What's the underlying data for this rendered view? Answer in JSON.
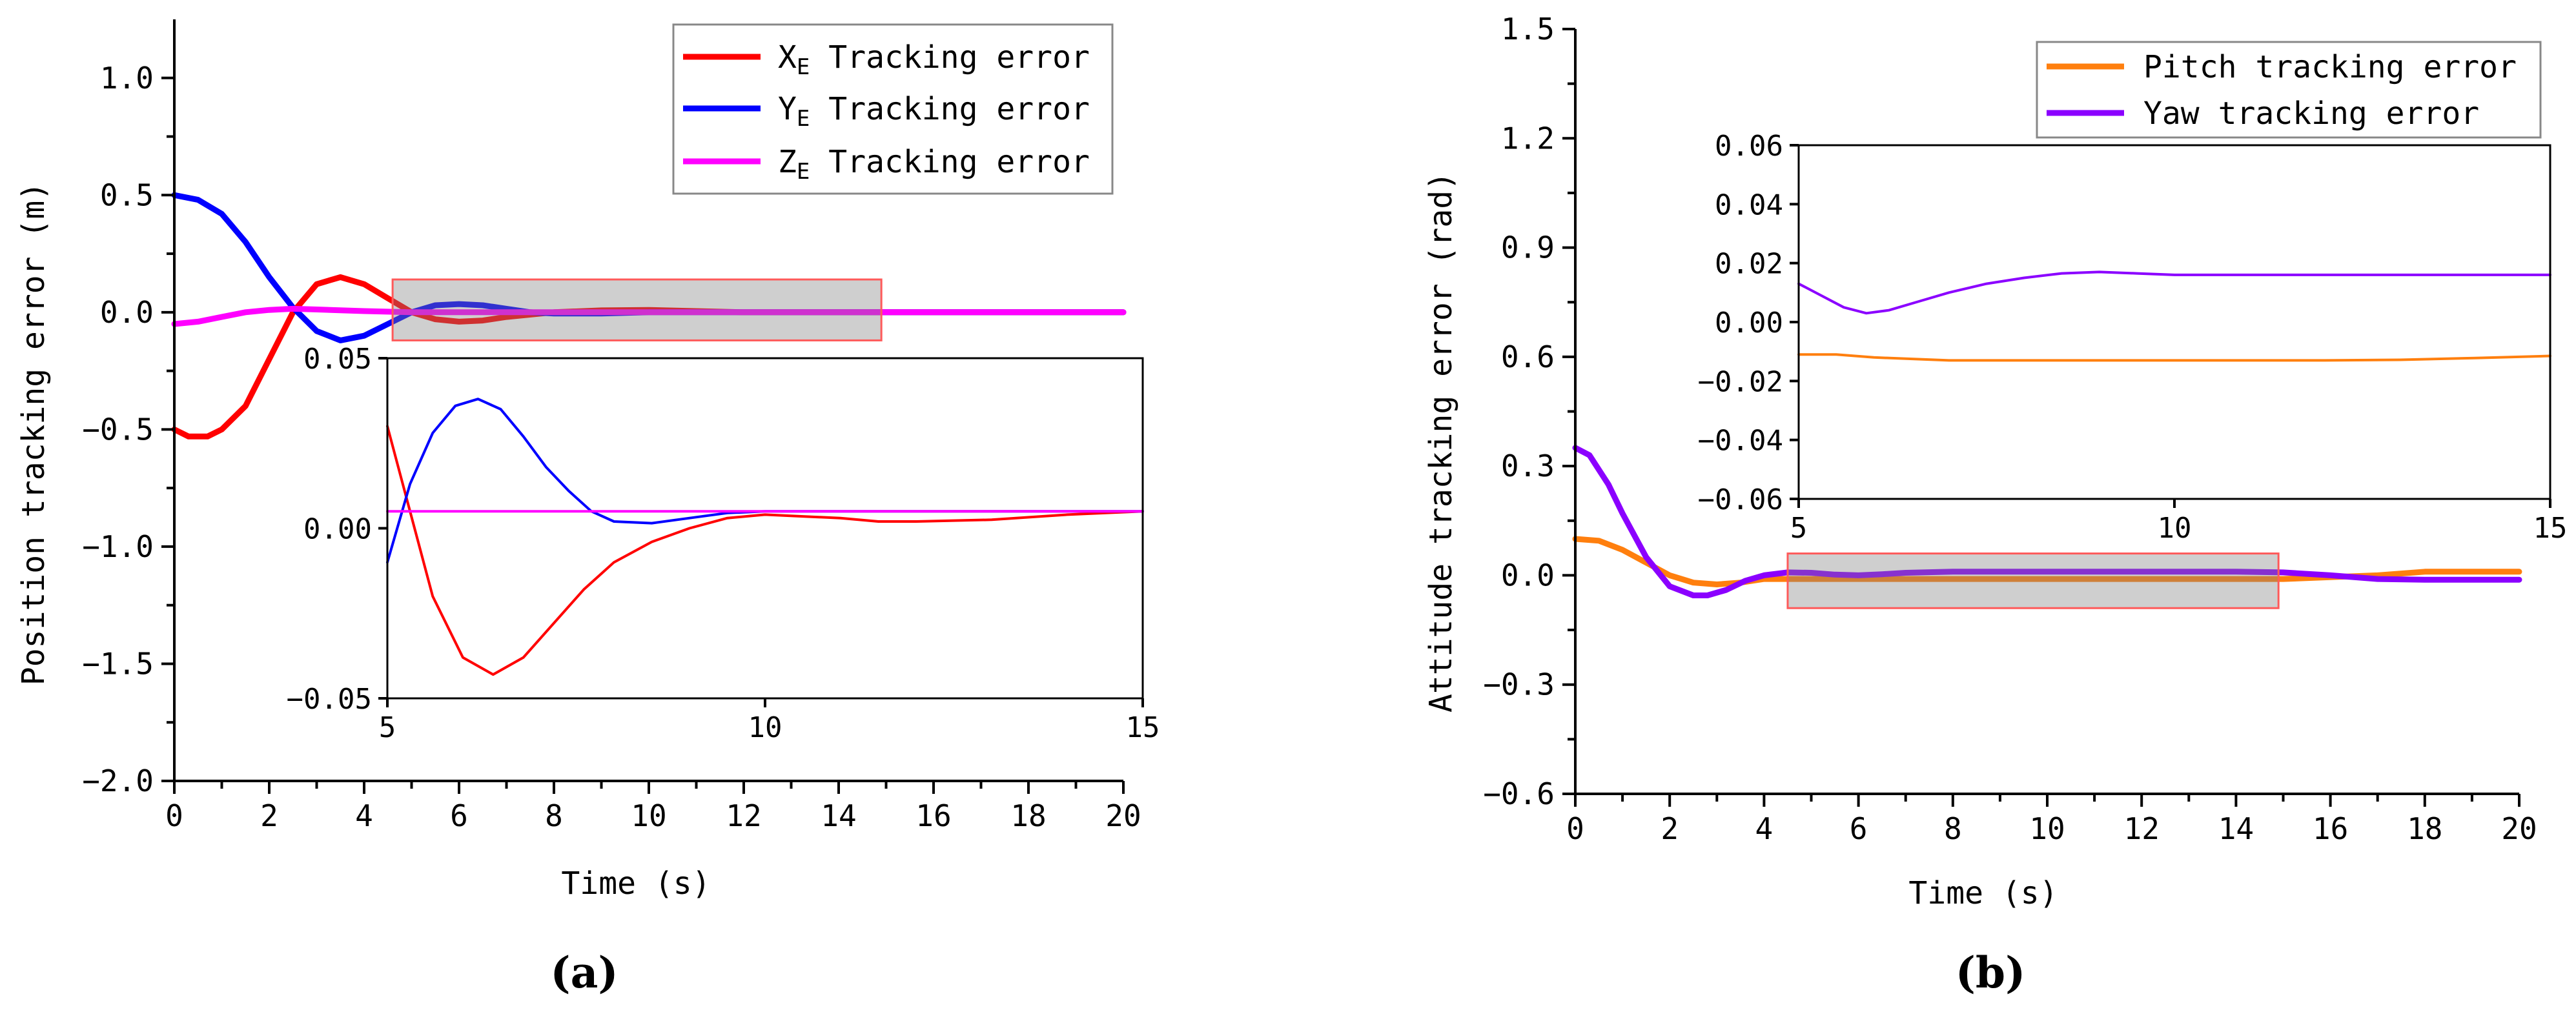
{
  "panel_a": {
    "label": "a",
    "xlabel": "Time (s)",
    "ylabel": "Position tracking error (m)",
    "legend": [
      "X_E Tracking error",
      "Y_E Tracking error",
      "Z_E Tracking error"
    ]
  },
  "panel_b": {
    "label": "b",
    "xlabel": "Time (s)",
    "ylabel": "Attitude tracking error (rad)",
    "legend": [
      "Pitch tracking error",
      "Yaw tracking error"
    ]
  },
  "chart_data": [
    {
      "id": "a-main",
      "type": "line",
      "xlabel": "Time (s)",
      "ylabel": "Position tracking error (m)",
      "xlim": [
        0,
        20
      ],
      "ylim": [
        -2.0,
        1.25
      ],
      "xticks": [
        0,
        2,
        4,
        6,
        8,
        10,
        12,
        14,
        16,
        18,
        20
      ],
      "yticks": [
        -2.0,
        -1.5,
        -1.0,
        -0.5,
        0.0,
        0.5,
        1.0
      ],
      "ytick_labels": [
        "-2.0",
        "-1.5",
        "-1.0",
        "-0.5",
        "0.0",
        "0.5",
        "1.0"
      ],
      "legend_position": "top-right",
      "series": [
        {
          "name": "X_E Tracking error",
          "color": "#ff0000",
          "x": [
            0,
            0.3,
            0.7,
            1,
            1.5,
            2,
            2.5,
            3,
            3.5,
            4,
            4.5,
            5,
            5.5,
            6,
            6.5,
            7,
            8,
            9,
            10,
            12,
            14,
            16,
            20
          ],
          "y": [
            -0.5,
            -0.53,
            -0.53,
            -0.5,
            -0.4,
            -0.2,
            0.0,
            0.12,
            0.15,
            0.12,
            0.06,
            0.0,
            -0.03,
            -0.04,
            -0.035,
            -0.02,
            0.0,
            0.008,
            0.01,
            0.0,
            0.0,
            0.0,
            0.0
          ]
        },
        {
          "name": "Y_E Tracking error",
          "color": "#0000ff",
          "x": [
            0,
            0.5,
            1,
            1.5,
            2,
            2.5,
            3,
            3.5,
            4,
            4.5,
            5,
            5.5,
            6,
            6.5,
            7,
            7.5,
            8,
            9,
            10,
            14,
            20
          ],
          "y": [
            0.5,
            0.48,
            0.42,
            0.3,
            0.15,
            0.02,
            -0.08,
            -0.12,
            -0.1,
            -0.05,
            0.0,
            0.03,
            0.035,
            0.03,
            0.015,
            0.0,
            -0.005,
            -0.005,
            0.0,
            0.0,
            0.0
          ]
        },
        {
          "name": "Z_E Tracking error",
          "color": "#ff00ff",
          "x": [
            0,
            0.5,
            1,
            1.5,
            2,
            2.5,
            3,
            4,
            5,
            6,
            8,
            10,
            20
          ],
          "y": [
            -0.05,
            -0.04,
            -0.02,
            0.0,
            0.01,
            0.015,
            0.012,
            0.005,
            0.0,
            0.0,
            0.0,
            0.0,
            0.0
          ]
        }
      ],
      "zoom_box": {
        "x": [
          4.6,
          14.9
        ],
        "y": [
          -0.12,
          0.14
        ]
      }
    },
    {
      "id": "a-inset",
      "type": "line",
      "xlim": [
        5,
        15
      ],
      "ylim": [
        -0.05,
        0.05
      ],
      "xticks": [
        5,
        10,
        15
      ],
      "yticks": [
        -0.05,
        0.0,
        0.05
      ],
      "ytick_labels": [
        "-0.05",
        "0.00",
        "0.05"
      ],
      "series": [
        {
          "name": "X_E Tracking error",
          "color": "#ff0000",
          "x": [
            5,
            5.3,
            5.6,
            6,
            6.4,
            6.8,
            7.2,
            7.6,
            8,
            8.5,
            9,
            9.5,
            10,
            10.5,
            11,
            11.5,
            12,
            13,
            14,
            15
          ],
          "y": [
            0.03,
            0.005,
            -0.02,
            -0.038,
            -0.043,
            -0.038,
            -0.028,
            -0.018,
            -0.01,
            -0.004,
            0.0,
            0.003,
            0.004,
            0.0035,
            0.003,
            0.002,
            0.002,
            0.0025,
            0.004,
            0.005
          ]
        },
        {
          "name": "Y_E Tracking error",
          "color": "#0000ff",
          "x": [
            5,
            5.3,
            5.6,
            5.9,
            6.2,
            6.5,
            6.8,
            7.1,
            7.4,
            7.7,
            8,
            8.5,
            9,
            9.5,
            10,
            11,
            12,
            15
          ],
          "y": [
            -0.01,
            0.013,
            0.028,
            0.036,
            0.038,
            0.035,
            0.027,
            0.018,
            0.011,
            0.005,
            0.002,
            0.0015,
            0.003,
            0.0045,
            0.005,
            0.005,
            0.005,
            0.005
          ]
        },
        {
          "name": "Z_E Tracking error",
          "color": "#ff00ff",
          "x": [
            5,
            15
          ],
          "y": [
            0.005,
            0.005
          ]
        }
      ]
    },
    {
      "id": "b-main",
      "type": "line",
      "xlabel": "Time (s)",
      "ylabel": "Attitude tracking error (rad)",
      "xlim": [
        0,
        20
      ],
      "ylim": [
        -0.6,
        1.5
      ],
      "xticks": [
        0,
        2,
        4,
        6,
        8,
        10,
        12,
        14,
        16,
        18,
        20
      ],
      "yticks": [
        -0.6,
        -0.3,
        0.0,
        0.3,
        0.6,
        0.9,
        1.2,
        1.5
      ],
      "ytick_labels": [
        "-0.6",
        "-0.3",
        "0.0",
        "0.3",
        "0.6",
        "0.9",
        "1.2",
        "1.5"
      ],
      "legend_position": "top-right",
      "series": [
        {
          "name": "Pitch tracking error",
          "color": "#ff7f0e",
          "x": [
            0,
            0.5,
            1,
            1.5,
            2,
            2.5,
            3,
            3.5,
            4,
            5,
            6,
            8,
            10,
            12,
            14,
            15,
            16,
            17,
            18,
            20
          ],
          "y": [
            0.1,
            0.095,
            0.07,
            0.035,
            0.0,
            -0.02,
            -0.025,
            -0.02,
            -0.01,
            -0.01,
            -0.01,
            -0.01,
            -0.01,
            -0.01,
            -0.01,
            -0.01,
            -0.005,
            0.0,
            0.01,
            0.01
          ]
        },
        {
          "name": "Yaw tracking error",
          "color": "#8b00ff",
          "x": [
            0,
            0.3,
            0.7,
            1,
            1.5,
            2,
            2.5,
            2.8,
            3.2,
            3.6,
            4,
            4.5,
            5,
            5.5,
            6,
            6.5,
            7,
            8,
            10,
            12,
            14,
            15,
            16,
            17,
            18,
            20
          ],
          "y": [
            0.35,
            0.33,
            0.25,
            0.17,
            0.05,
            -0.03,
            -0.055,
            -0.055,
            -0.04,
            -0.015,
            0.0,
            0.008,
            0.007,
            0.002,
            0.0,
            0.003,
            0.007,
            0.01,
            0.01,
            0.01,
            0.01,
            0.008,
            0.0,
            -0.01,
            -0.012,
            -0.012
          ]
        }
      ],
      "zoom_box": {
        "x": [
          4.5,
          14.9
        ],
        "y": [
          -0.09,
          0.06
        ]
      }
    },
    {
      "id": "b-inset",
      "type": "line",
      "xlim": [
        5,
        15
      ],
      "ylim": [
        -0.06,
        0.06
      ],
      "xticks": [
        5,
        10,
        15
      ],
      "yticks": [
        -0.06,
        -0.04,
        -0.02,
        0.0,
        0.02,
        0.04,
        0.06
      ],
      "ytick_labels": [
        "-0.06",
        "-0.04",
        "-0.02",
        "0.00",
        "0.02",
        "0.04",
        "0.06"
      ],
      "series": [
        {
          "name": "Pitch tracking error",
          "color": "#ff7f0e",
          "x": [
            5,
            5.5,
            6,
            7,
            8,
            10,
            12,
            13,
            14,
            15
          ],
          "y": [
            -0.011,
            -0.011,
            -0.012,
            -0.013,
            -0.013,
            -0.013,
            -0.013,
            -0.0128,
            -0.0122,
            -0.0115
          ]
        },
        {
          "name": "Yaw tracking error",
          "color": "#8b00ff",
          "x": [
            5,
            5.3,
            5.6,
            5.9,
            6.2,
            6.6,
            7,
            7.5,
            8,
            8.5,
            9,
            9.5,
            10,
            11,
            12,
            15
          ],
          "y": [
            0.013,
            0.009,
            0.005,
            0.003,
            0.004,
            0.007,
            0.01,
            0.013,
            0.015,
            0.0165,
            0.017,
            0.0165,
            0.016,
            0.016,
            0.016,
            0.016
          ]
        }
      ]
    }
  ]
}
